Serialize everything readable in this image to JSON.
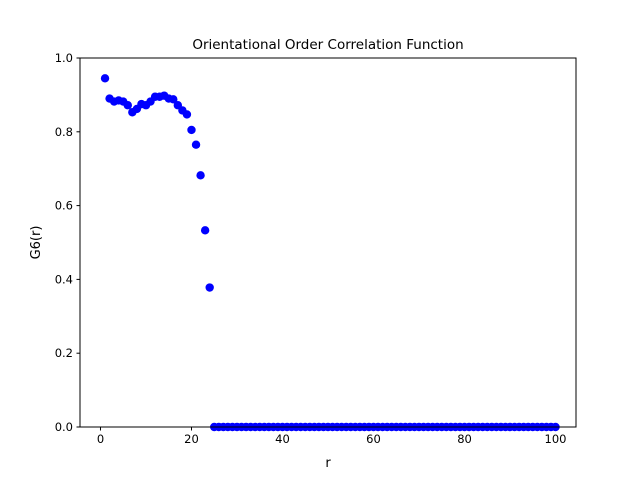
{
  "chart_data": {
    "type": "scatter",
    "title": "Orientational Order Correlation Function",
    "xlabel": "r",
    "ylabel": "G6(r)",
    "xlim": [
      -4.5,
      104.5
    ],
    "ylim": [
      0.0,
      1.0
    ],
    "xticks": [
      0,
      20,
      40,
      60,
      80,
      100
    ],
    "yticks": [
      0.0,
      0.2,
      0.4,
      0.6,
      0.8,
      1.0
    ],
    "xtick_labels": [
      "0",
      "20",
      "40",
      "60",
      "80",
      "100"
    ],
    "ytick_labels": [
      "0.0",
      "0.2",
      "0.4",
      "0.6",
      "0.8",
      "1.0"
    ],
    "grid": false,
    "marker_color": "#0000ff",
    "x": [
      1,
      2,
      3,
      4,
      5,
      6,
      7,
      8,
      9,
      10,
      11,
      12,
      13,
      14,
      15,
      16,
      17,
      18,
      19,
      20,
      21,
      22,
      23,
      24,
      25,
      26,
      27,
      28,
      29,
      30,
      31,
      32,
      33,
      34,
      35,
      36,
      37,
      38,
      39,
      40,
      41,
      42,
      43,
      44,
      45,
      46,
      47,
      48,
      49,
      50,
      51,
      52,
      53,
      54,
      55,
      56,
      57,
      58,
      59,
      60,
      61,
      62,
      63,
      64,
      65,
      66,
      67,
      68,
      69,
      70,
      71,
      72,
      73,
      74,
      75,
      76,
      77,
      78,
      79,
      80,
      81,
      82,
      83,
      84,
      85,
      86,
      87,
      88,
      89,
      90,
      91,
      92,
      93,
      94,
      95,
      96,
      97,
      98,
      99,
      100
    ],
    "y": [
      0.945,
      0.89,
      0.882,
      0.885,
      0.882,
      0.872,
      0.853,
      0.862,
      0.875,
      0.872,
      0.882,
      0.895,
      0.895,
      0.898,
      0.89,
      0.888,
      0.872,
      0.858,
      0.847,
      0.805,
      0.765,
      0.682,
      0.533,
      0.378,
      0,
      0,
      0,
      0,
      0,
      0,
      0,
      0,
      0,
      0,
      0,
      0,
      0,
      0,
      0,
      0,
      0,
      0,
      0,
      0,
      0,
      0,
      0,
      0,
      0,
      0,
      0,
      0,
      0,
      0,
      0,
      0,
      0,
      0,
      0,
      0,
      0,
      0,
      0,
      0,
      0,
      0,
      0,
      0,
      0,
      0,
      0,
      0,
      0,
      0,
      0,
      0,
      0,
      0,
      0,
      0,
      0,
      0,
      0,
      0,
      0,
      0,
      0,
      0,
      0,
      0,
      0,
      0,
      0,
      0,
      0,
      0,
      0,
      0,
      0,
      0
    ]
  }
}
